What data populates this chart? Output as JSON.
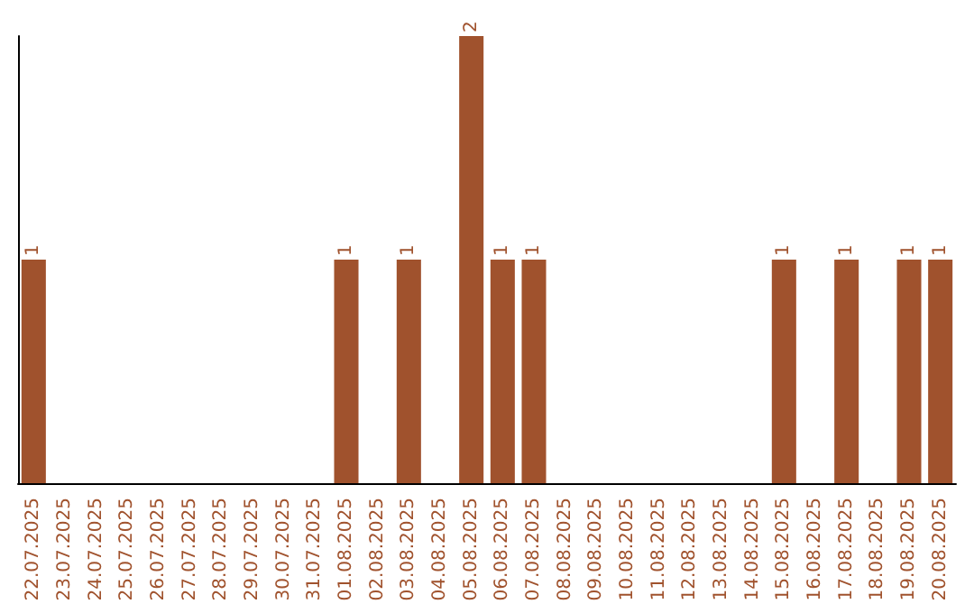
{
  "chart_data": {
    "type": "bar",
    "categories": [
      "22.07.2025",
      "23.07.2025",
      "24.07.2025",
      "25.07.2025",
      "26.07.2025",
      "27.07.2025",
      "28.07.2025",
      "29.07.2025",
      "30.07.2025",
      "31.07.2025",
      "01.08.2025",
      "02.08.2025",
      "03.08.2025",
      "04.08.2025",
      "05.08.2025",
      "06.08.2025",
      "07.08.2025",
      "08.08.2025",
      "09.08.2025",
      "10.08.2025",
      "11.08.2025",
      "12.08.2025",
      "13.08.2025",
      "14.08.2025",
      "15.08.2025",
      "16.08.2025",
      "17.08.2025",
      "18.08.2025",
      "19.08.2025",
      "20.08.2025"
    ],
    "values": [
      1,
      0,
      0,
      0,
      0,
      0,
      0,
      0,
      0,
      0,
      1,
      0,
      1,
      0,
      2,
      1,
      1,
      0,
      0,
      0,
      0,
      0,
      0,
      0,
      1,
      0,
      1,
      0,
      1,
      1
    ],
    "value_labels": [
      "1",
      null,
      null,
      null,
      null,
      null,
      null,
      null,
      null,
      null,
      "1",
      null,
      "1",
      null,
      "2",
      "1",
      "1",
      null,
      null,
      null,
      null,
      null,
      null,
      null,
      "1",
      null,
      "1",
      null,
      "1",
      "1"
    ],
    "color": "#a0522d",
    "ylim": [
      0,
      2
    ],
    "tick_labels": "x"
  }
}
